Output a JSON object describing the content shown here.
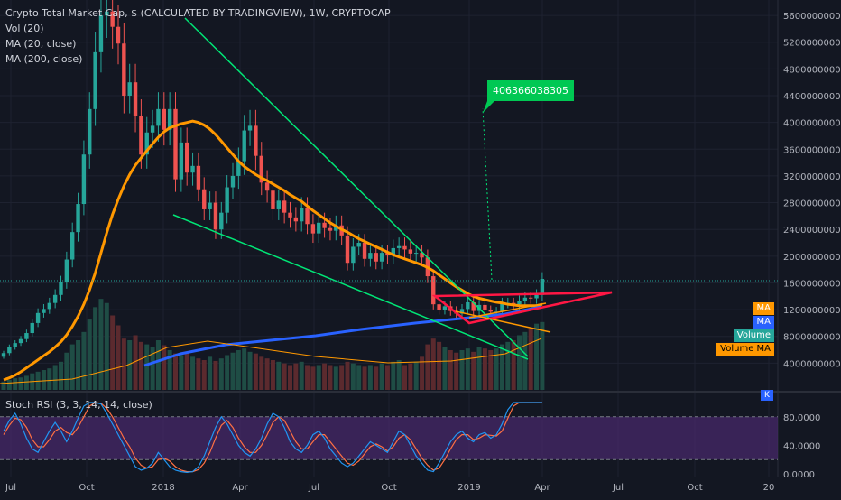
{
  "legend": {
    "title": "Crypto Total Market Cap, $ (CALCULATED BY TRADINGVIEW), 1W, CRYPTOCAP",
    "vol": "Vol (20)",
    "ma20": "MA (20, close)",
    "ma200": "MA (200, close)"
  },
  "rsi_legend": "Stoch RSI (3, 3, 14, 14, close)",
  "tags": {
    "ma_orange": "MA",
    "ma_blue": "MA",
    "volume": "Volume",
    "volume_ma": "Volume MA",
    "k": "K"
  },
  "annotation": "406366038305",
  "colors": {
    "background": "#131722",
    "up": "#26a69a",
    "down": "#ef5350",
    "ma20": "#ff9800",
    "ma200": "#2962ff",
    "trend": "#00e676",
    "triangle": "#ff1744",
    "rsi_k": "#2196f3",
    "rsi_d": "#ff7043",
    "rsi_band": "#4a2a6e"
  },
  "chart_data": [
    {
      "type": "candlestick",
      "price_axis": [
        "560000000000",
        "520000000000",
        "480000000000",
        "440000000000",
        "400000000000",
        "360000000000",
        "320000000000",
        "280000000000",
        "240000000000",
        "200000000000",
        "160000000000",
        "120000000000",
        "80000000000",
        "40000000000"
      ],
      "x_ticks": [
        "Jul",
        "Oct",
        "2018",
        "Apr",
        "Jul",
        "Oct",
        "2019",
        "Apr",
        "Jul",
        "Oct",
        "20"
      ],
      "ylim": [
        0,
        575000000000
      ],
      "close": [
        55,
        64,
        70,
        76,
        85,
        100,
        115,
        121,
        130,
        142,
        161,
        195,
        236,
        278,
        352,
        420,
        505,
        560,
        566,
        543,
        518,
        440,
        460,
        410,
        352,
        385,
        395,
        420,
        389,
        420,
        315,
        370,
        325,
        335,
        300,
        270,
        280,
        240,
        265,
        303,
        320,
        342,
        388,
        395,
        350,
        310,
        298,
        270,
        283,
        265,
        258,
        252,
        272,
        248,
        234,
        250,
        242,
        238,
        246,
        231,
        190,
        214,
        220,
        196,
        205,
        192,
        205,
        201,
        212,
        215,
        210,
        204,
        205,
        198,
        170,
        128,
        120,
        125,
        118,
        114,
        121,
        131,
        118,
        127,
        119,
        117,
        117,
        130,
        130,
        128,
        133,
        138,
        137,
        142,
        166
      ],
      "volume": [
        10,
        12,
        14,
        15,
        17,
        20,
        22,
        24,
        26,
        30,
        34,
        45,
        55,
        60,
        70,
        85,
        100,
        110,
        105,
        90,
        78,
        62,
        60,
        66,
        58,
        55,
        52,
        60,
        54,
        48,
        44,
        42,
        46,
        40,
        38,
        36,
        40,
        35,
        38,
        42,
        45,
        48,
        50,
        46,
        44,
        40,
        38,
        36,
        34,
        32,
        30,
        32,
        34,
        30,
        28,
        30,
        32,
        30,
        28,
        30,
        34,
        32,
        30,
        28,
        30,
        28,
        32,
        30,
        34,
        36,
        30,
        32,
        34,
        40,
        55,
        62,
        58,
        52,
        48,
        45,
        48,
        50,
        46,
        52,
        50,
        48,
        50,
        55,
        58,
        60,
        66,
        70,
        74,
        80,
        82
      ],
      "ma20": [
        15,
        18,
        22,
        27,
        33,
        39,
        45,
        51,
        57,
        64,
        72,
        82,
        95,
        110,
        128,
        150,
        175,
        205,
        235,
        262,
        285,
        305,
        322,
        336,
        347,
        358,
        368,
        378,
        386,
        392,
        395,
        398,
        400,
        402,
        400,
        396,
        390,
        382,
        372,
        362,
        352,
        342,
        334,
        328,
        322,
        317,
        313,
        308,
        303,
        298,
        292,
        287,
        282,
        275,
        268,
        262,
        256,
        250,
        245,
        240,
        236,
        231,
        226,
        222,
        218,
        214,
        210,
        206,
        202,
        199,
        196,
        193,
        190,
        187,
        183,
        178,
        172,
        166,
        160,
        154,
        149,
        144,
        140,
        137,
        135,
        133,
        131,
        130,
        128,
        127,
        126,
        126,
        126,
        126,
        128
      ],
      "ma200": [
        0,
        0,
        0,
        0,
        0,
        0,
        0,
        0,
        0,
        0,
        0,
        0,
        0,
        0,
        0,
        0,
        0,
        0,
        0,
        0,
        0,
        0,
        0,
        0,
        0,
        0,
        0,
        0,
        0,
        0,
        0,
        0,
        0,
        0,
        0,
        0,
        0,
        0,
        0,
        0,
        0,
        0,
        0,
        0,
        0,
        0,
        0,
        0,
        0,
        0,
        0,
        0,
        0,
        0,
        0,
        0,
        0,
        0,
        0,
        0,
        0,
        0,
        0,
        0,
        0,
        0,
        0,
        0,
        0,
        0,
        0,
        0,
        0,
        0,
        0,
        0,
        0,
        0,
        0,
        0,
        0,
        0,
        0,
        0,
        0,
        0,
        0,
        0,
        0,
        0,
        0,
        0,
        0,
        0,
        0
      ]
    },
    {
      "type": "line",
      "title": "Stoch RSI (3, 3, 14, 14, close)",
      "y_ticks": [
        "80.0000",
        "40.0000",
        "0.0000"
      ],
      "ylim": [
        0,
        100
      ],
      "band": [
        20,
        80
      ],
      "k": [
        60,
        75,
        85,
        70,
        50,
        35,
        30,
        45,
        60,
        72,
        60,
        45,
        60,
        78,
        95,
        100,
        100,
        98,
        85,
        70,
        55,
        40,
        25,
        10,
        5,
        8,
        15,
        30,
        20,
        10,
        5,
        3,
        2,
        3,
        10,
        25,
        45,
        65,
        80,
        70,
        55,
        40,
        30,
        25,
        35,
        50,
        70,
        85,
        80,
        65,
        45,
        35,
        30,
        40,
        55,
        60,
        50,
        35,
        25,
        15,
        10,
        15,
        25,
        35,
        45,
        40,
        35,
        30,
        45,
        60,
        55,
        40,
        25,
        15,
        5,
        3,
        15,
        30,
        45,
        55,
        60,
        50,
        45,
        55,
        58,
        50,
        55,
        70,
        90,
        100,
        100,
        100,
        100,
        100,
        100
      ],
      "d": [
        55,
        68,
        78,
        76,
        65,
        48,
        38,
        38,
        48,
        60,
        65,
        58,
        55,
        65,
        80,
        95,
        100,
        99,
        92,
        80,
        65,
        50,
        38,
        22,
        12,
        8,
        10,
        20,
        22,
        18,
        10,
        5,
        3,
        3,
        6,
        15,
        30,
        50,
        68,
        75,
        65,
        50,
        38,
        30,
        30,
        40,
        55,
        72,
        80,
        75,
        60,
        45,
        35,
        35,
        45,
        55,
        55,
        45,
        35,
        25,
        15,
        12,
        18,
        28,
        38,
        42,
        38,
        32,
        38,
        50,
        55,
        48,
        35,
        22,
        12,
        5,
        8,
        20,
        35,
        48,
        55,
        55,
        48,
        50,
        55,
        54,
        53,
        60,
        78,
        95,
        100,
        100,
        100,
        100,
        100
      ]
    }
  ]
}
